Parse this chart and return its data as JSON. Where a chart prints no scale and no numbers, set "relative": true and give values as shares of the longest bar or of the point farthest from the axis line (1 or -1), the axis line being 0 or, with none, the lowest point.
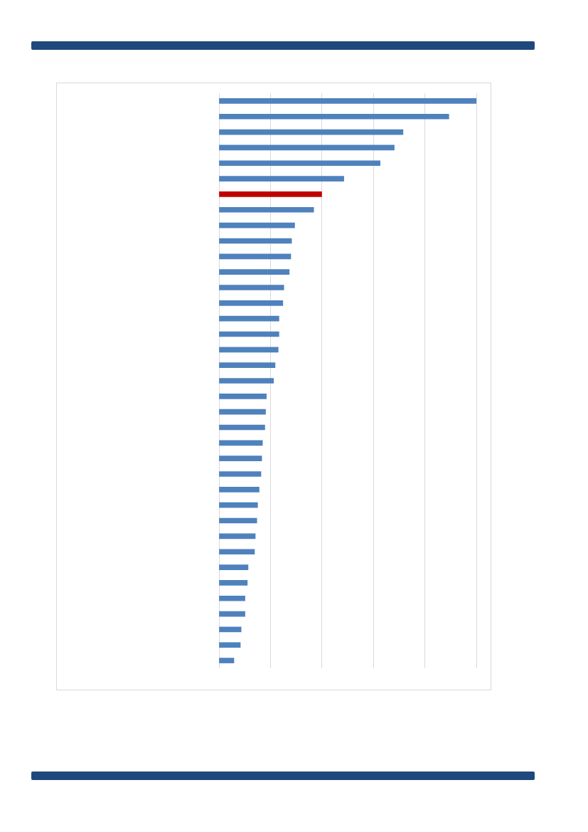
{
  "chart_data": {
    "type": "bar",
    "orientation": "horizontal",
    "relative": true,
    "grid": "x",
    "tick_labels": false,
    "categories": [
      null,
      null,
      null,
      null,
      null,
      null,
      null,
      null,
      null,
      null,
      null,
      null,
      null,
      null,
      null,
      null,
      null,
      null,
      null,
      null,
      null,
      null,
      null,
      null,
      null,
      null,
      null,
      null,
      null,
      null,
      null,
      null,
      null,
      null,
      null,
      null,
      null
    ],
    "values": [
      1,
      0.893,
      0.715,
      0.681,
      0.626,
      0.485,
      0.399,
      0.368,
      0.294,
      0.282,
      0.279,
      0.273,
      0.252,
      0.248,
      0.233,
      0.233,
      0.23,
      0.218,
      0.212,
      0.184,
      0.181,
      0.178,
      0.169,
      0.166,
      0.163,
      0.156,
      0.15,
      0.147,
      0.141,
      0.138,
      0.113,
      0.11,
      0.101,
      0.101,
      0.086,
      0.083,
      0.058
    ],
    "colors": [
      "#4f81bd",
      "#4f81bd",
      "#4f81bd",
      "#4f81bd",
      "#4f81bd",
      "#4f81bd",
      "#c00000",
      "#4f81bd",
      "#4f81bd",
      "#4f81bd",
      "#4f81bd",
      "#4f81bd",
      "#4f81bd",
      "#4f81bd",
      "#4f81bd",
      "#4f81bd",
      "#4f81bd",
      "#4f81bd",
      "#4f81bd",
      "#4f81bd",
      "#4f81bd",
      "#4f81bd",
      "#4f81bd",
      "#4f81bd",
      "#4f81bd",
      "#4f81bd",
      "#4f81bd",
      "#4f81bd",
      "#4f81bd",
      "#4f81bd",
      "#4f81bd",
      "#4f81bd",
      "#4f81bd",
      "#4f81bd",
      "#4f81bd",
      "#4f81bd",
      "#4f81bd"
    ],
    "legend": false
  }
}
